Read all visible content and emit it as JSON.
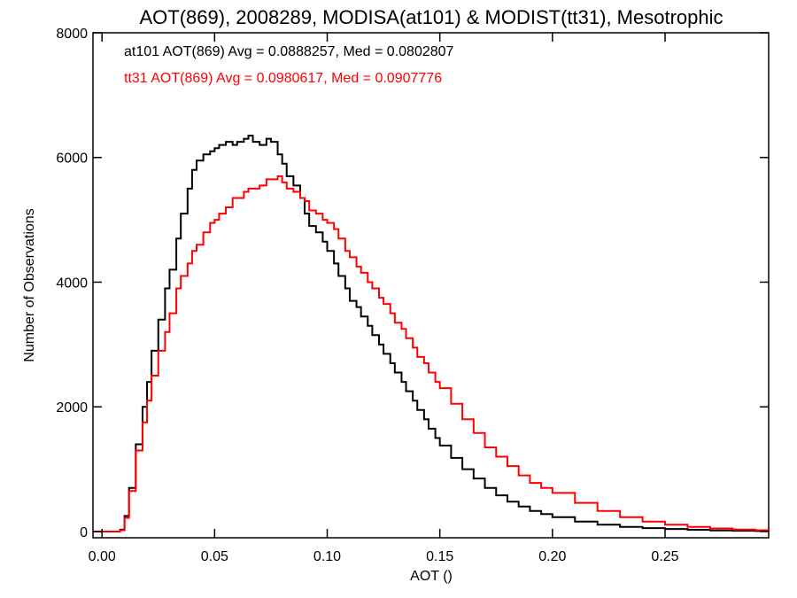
{
  "chart_data": {
    "type": "line",
    "step": true,
    "title": "AOT(869), 2008289, MODISA(at101) & MODIST(tt31), Mesotrophic",
    "xlabel": "AOT ()",
    "ylabel": "Number of Observations",
    "xlim": [
      -0.004,
      0.296
    ],
    "ylim": [
      -100,
      8000
    ],
    "xticks": [
      0.0,
      0.05,
      0.1,
      0.15,
      0.2,
      0.25
    ],
    "xtick_labels": [
      "0.00",
      "0.05",
      "0.10",
      "0.15",
      "0.20",
      "0.25"
    ],
    "yticks": [
      0,
      2000,
      4000,
      6000,
      8000
    ],
    "ytick_labels": [
      "0",
      "2000",
      "4000",
      "6000",
      "8000"
    ],
    "grid": false,
    "legend_position": "top-left",
    "series": [
      {
        "name": "at101",
        "color": "#000000",
        "annotation": "at101 AOT(869) Avg = 0.0888257, Med = 0.0802807",
        "x": [
          -0.004,
          0.005,
          0.008,
          0.01,
          0.012,
          0.015,
          0.018,
          0.02,
          0.022,
          0.025,
          0.028,
          0.03,
          0.033,
          0.035,
          0.038,
          0.04,
          0.042,
          0.045,
          0.048,
          0.05,
          0.052,
          0.055,
          0.058,
          0.06,
          0.063,
          0.065,
          0.067,
          0.07,
          0.073,
          0.075,
          0.078,
          0.08,
          0.082,
          0.085,
          0.088,
          0.09,
          0.092,
          0.095,
          0.098,
          0.1,
          0.103,
          0.105,
          0.108,
          0.11,
          0.113,
          0.115,
          0.118,
          0.12,
          0.123,
          0.125,
          0.128,
          0.13,
          0.133,
          0.135,
          0.138,
          0.14,
          0.143,
          0.145,
          0.148,
          0.15,
          0.155,
          0.16,
          0.165,
          0.17,
          0.175,
          0.18,
          0.185,
          0.19,
          0.195,
          0.2,
          0.21,
          0.22,
          0.23,
          0.24,
          0.25,
          0.26,
          0.27,
          0.28,
          0.29,
          0.296
        ],
        "y": [
          0,
          0,
          30,
          250,
          700,
          1400,
          2000,
          2400,
          2900,
          3400,
          3900,
          4200,
          4700,
          5100,
          5500,
          5800,
          5950,
          6050,
          6100,
          6150,
          6200,
          6250,
          6200,
          6250,
          6300,
          6350,
          6250,
          6200,
          6300,
          6250,
          6050,
          5900,
          5700,
          5550,
          5350,
          5100,
          4900,
          4800,
          4650,
          4500,
          4300,
          4100,
          3900,
          3700,
          3600,
          3450,
          3300,
          3150,
          3000,
          2850,
          2700,
          2550,
          2400,
          2250,
          2100,
          1950,
          1800,
          1650,
          1500,
          1380,
          1180,
          1000,
          850,
          700,
          580,
          480,
          400,
          330,
          280,
          230,
          160,
          110,
          75,
          55,
          40,
          28,
          18,
          12,
          8,
          5
        ]
      },
      {
        "name": "tt31",
        "color": "#ff0000",
        "annotation": "tt31 AOT(869) Avg = 0.0980617, Med = 0.0907776",
        "x": [
          -0.004,
          0.005,
          0.008,
          0.01,
          0.012,
          0.015,
          0.018,
          0.02,
          0.022,
          0.025,
          0.028,
          0.03,
          0.033,
          0.035,
          0.038,
          0.04,
          0.042,
          0.045,
          0.048,
          0.05,
          0.052,
          0.055,
          0.058,
          0.06,
          0.063,
          0.065,
          0.067,
          0.07,
          0.073,
          0.075,
          0.078,
          0.08,
          0.082,
          0.085,
          0.088,
          0.09,
          0.092,
          0.095,
          0.098,
          0.1,
          0.103,
          0.105,
          0.108,
          0.11,
          0.113,
          0.115,
          0.118,
          0.12,
          0.123,
          0.125,
          0.128,
          0.13,
          0.133,
          0.135,
          0.138,
          0.14,
          0.143,
          0.145,
          0.148,
          0.15,
          0.155,
          0.16,
          0.165,
          0.17,
          0.175,
          0.18,
          0.185,
          0.19,
          0.195,
          0.2,
          0.21,
          0.22,
          0.23,
          0.24,
          0.25,
          0.26,
          0.27,
          0.28,
          0.29,
          0.296
        ],
        "y": [
          0,
          0,
          20,
          220,
          650,
          1300,
          1750,
          2100,
          2500,
          2900,
          3200,
          3500,
          3900,
          4100,
          4300,
          4500,
          4600,
          4800,
          4950,
          5000,
          5100,
          5200,
          5350,
          5350,
          5450,
          5500,
          5500,
          5550,
          5650,
          5650,
          5700,
          5600,
          5500,
          5450,
          5350,
          5300,
          5150,
          5100,
          5000,
          4950,
          4850,
          4700,
          4500,
          4400,
          4250,
          4150,
          4000,
          3900,
          3750,
          3650,
          3500,
          3350,
          3250,
          3100,
          2950,
          2800,
          2700,
          2550,
          2400,
          2300,
          2050,
          1800,
          1580,
          1350,
          1200,
          1050,
          900,
          780,
          700,
          620,
          460,
          330,
          230,
          160,
          110,
          75,
          50,
          32,
          20,
          12
        ]
      }
    ]
  }
}
